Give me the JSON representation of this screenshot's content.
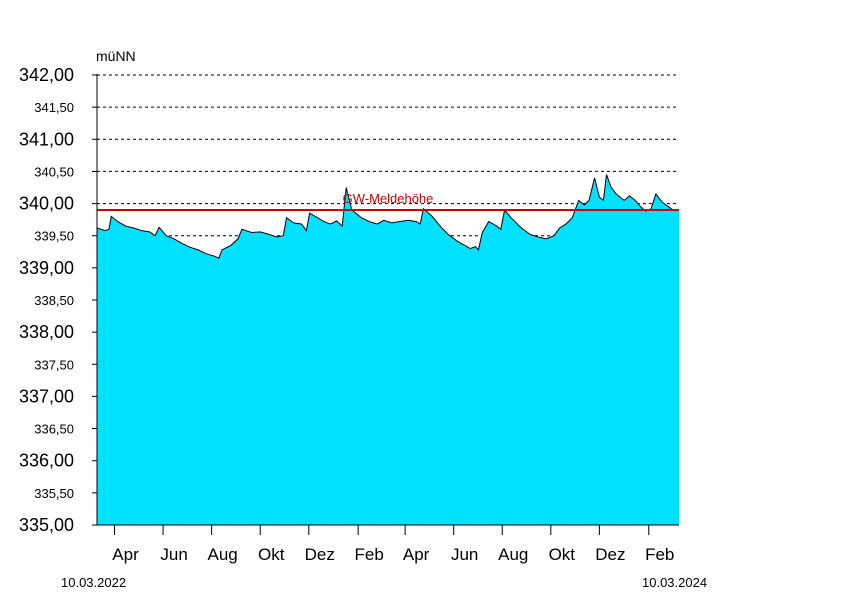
{
  "chart_data": {
    "type": "area",
    "unit_label": "müNN",
    "ylim": [
      335.0,
      342.0
    ],
    "y_ticks": [
      {
        "value": 342.0,
        "label": "342,00",
        "major": true
      },
      {
        "value": 341.5,
        "label": "341,50",
        "major": false
      },
      {
        "value": 341.0,
        "label": "341,00",
        "major": true
      },
      {
        "value": 340.5,
        "label": "340,50",
        "major": false
      },
      {
        "value": 340.0,
        "label": "340,00",
        "major": true
      },
      {
        "value": 339.5,
        "label": "339,50",
        "major": false
      },
      {
        "value": 339.0,
        "label": "339,00",
        "major": true
      },
      {
        "value": 338.5,
        "label": "338,50",
        "major": false
      },
      {
        "value": 338.0,
        "label": "338,00",
        "major": true
      },
      {
        "value": 337.5,
        "label": "337,50",
        "major": false
      },
      {
        "value": 337.0,
        "label": "337,00",
        "major": true
      },
      {
        "value": 336.5,
        "label": "336,50",
        "major": false
      },
      {
        "value": 336.0,
        "label": "336,00",
        "major": true
      },
      {
        "value": 335.5,
        "label": "335,50",
        "major": false
      },
      {
        "value": 335.0,
        "label": "335,00",
        "major": true
      }
    ],
    "x_range": [
      "2022-03-10",
      "2024-03-10"
    ],
    "x_ticks": [
      {
        "date": "2022-04-01",
        "label": "Apr"
      },
      {
        "date": "2022-06-01",
        "label": "Jun"
      },
      {
        "date": "2022-08-01",
        "label": "Aug"
      },
      {
        "date": "2022-10-01",
        "label": "Okt"
      },
      {
        "date": "2022-12-01",
        "label": "Dez"
      },
      {
        "date": "2023-02-01",
        "label": "Feb"
      },
      {
        "date": "2023-04-01",
        "label": "Apr"
      },
      {
        "date": "2023-06-01",
        "label": "Jun"
      },
      {
        "date": "2023-08-01",
        "label": "Aug"
      },
      {
        "date": "2023-10-01",
        "label": "Okt"
      },
      {
        "date": "2023-12-01",
        "label": "Dez"
      },
      {
        "date": "2024-02-01",
        "label": "Feb"
      }
    ],
    "date_start_label": "10.03.2022",
    "date_end_label": "10.03.2024",
    "reference_line": {
      "value": 339.9,
      "label": "GW-Meldehöhe",
      "color": "#cc0000"
    },
    "fill_color": "#00e1ff",
    "grid": true,
    "points": [
      [
        "2022-03-10",
        339.62
      ],
      [
        "2022-03-20",
        339.58
      ],
      [
        "2022-03-25",
        339.6
      ],
      [
        "2022-03-28",
        339.8
      ],
      [
        "2022-04-05",
        339.72
      ],
      [
        "2022-04-15",
        339.65
      ],
      [
        "2022-04-25",
        339.62
      ],
      [
        "2022-05-05",
        339.58
      ],
      [
        "2022-05-15",
        339.56
      ],
      [
        "2022-05-22",
        339.5
      ],
      [
        "2022-05-27",
        339.63
      ],
      [
        "2022-06-05",
        339.5
      ],
      [
        "2022-06-15",
        339.45
      ],
      [
        "2022-06-25",
        339.38
      ],
      [
        "2022-07-05",
        339.32
      ],
      [
        "2022-07-15",
        339.28
      ],
      [
        "2022-07-25",
        339.22
      ],
      [
        "2022-08-05",
        339.18
      ],
      [
        "2022-08-10",
        339.15
      ],
      [
        "2022-08-14",
        339.28
      ],
      [
        "2022-08-25",
        339.35
      ],
      [
        "2022-09-03",
        339.45
      ],
      [
        "2022-09-08",
        339.6
      ],
      [
        "2022-09-20",
        339.55
      ],
      [
        "2022-10-01",
        339.56
      ],
      [
        "2022-10-12",
        339.52
      ],
      [
        "2022-10-22",
        339.48
      ],
      [
        "2022-10-30",
        339.5
      ],
      [
        "2022-11-03",
        339.78
      ],
      [
        "2022-11-12",
        339.7
      ],
      [
        "2022-11-22",
        339.68
      ],
      [
        "2022-11-28",
        339.58
      ],
      [
        "2022-12-02",
        339.85
      ],
      [
        "2022-12-12",
        339.78
      ],
      [
        "2022-12-20",
        339.72
      ],
      [
        "2022-12-28",
        339.68
      ],
      [
        "2023-01-05",
        339.73
      ],
      [
        "2023-01-12",
        339.65
      ],
      [
        "2023-01-17",
        340.25
      ],
      [
        "2023-01-24",
        339.9
      ],
      [
        "2023-02-05",
        339.78
      ],
      [
        "2023-02-15",
        339.72
      ],
      [
        "2023-02-25",
        339.68
      ],
      [
        "2023-03-05",
        339.74
      ],
      [
        "2023-03-15",
        339.7
      ],
      [
        "2023-03-25",
        339.72
      ],
      [
        "2023-04-05",
        339.74
      ],
      [
        "2023-04-15",
        339.72
      ],
      [
        "2023-04-20",
        339.68
      ],
      [
        "2023-04-24",
        339.92
      ],
      [
        "2023-05-05",
        339.8
      ],
      [
        "2023-05-15",
        339.65
      ],
      [
        "2023-05-25",
        339.52
      ],
      [
        "2023-06-05",
        339.42
      ],
      [
        "2023-06-15",
        339.35
      ],
      [
        "2023-06-22",
        339.3
      ],
      [
        "2023-06-28",
        339.33
      ],
      [
        "2023-07-02",
        339.28
      ],
      [
        "2023-07-07",
        339.55
      ],
      [
        "2023-07-15",
        339.72
      ],
      [
        "2023-07-25",
        339.65
      ],
      [
        "2023-07-30",
        339.6
      ],
      [
        "2023-08-04",
        339.9
      ],
      [
        "2023-08-12",
        339.78
      ],
      [
        "2023-08-25",
        339.62
      ],
      [
        "2023-09-05",
        339.52
      ],
      [
        "2023-09-15",
        339.48
      ],
      [
        "2023-09-25",
        339.45
      ],
      [
        "2023-10-05",
        339.5
      ],
      [
        "2023-10-12",
        339.62
      ],
      [
        "2023-10-20",
        339.68
      ],
      [
        "2023-10-28",
        339.78
      ],
      [
        "2023-11-05",
        340.05
      ],
      [
        "2023-11-12",
        339.98
      ],
      [
        "2023-11-18",
        340.05
      ],
      [
        "2023-11-25",
        340.4
      ],
      [
        "2023-12-01",
        340.1
      ],
      [
        "2023-12-06",
        340.05
      ],
      [
        "2023-12-10",
        340.45
      ],
      [
        "2023-12-16",
        340.25
      ],
      [
        "2023-12-22",
        340.15
      ],
      [
        "2024-01-01",
        340.05
      ],
      [
        "2024-01-08",
        340.12
      ],
      [
        "2024-01-15",
        340.05
      ],
      [
        "2024-01-22",
        339.95
      ],
      [
        "2024-01-28",
        339.88
      ],
      [
        "2024-02-04",
        339.92
      ],
      [
        "2024-02-10",
        340.15
      ],
      [
        "2024-02-18",
        340.02
      ],
      [
        "2024-02-26",
        339.95
      ],
      [
        "2024-03-03",
        339.9
      ],
      [
        "2024-03-10",
        339.9
      ]
    ]
  }
}
